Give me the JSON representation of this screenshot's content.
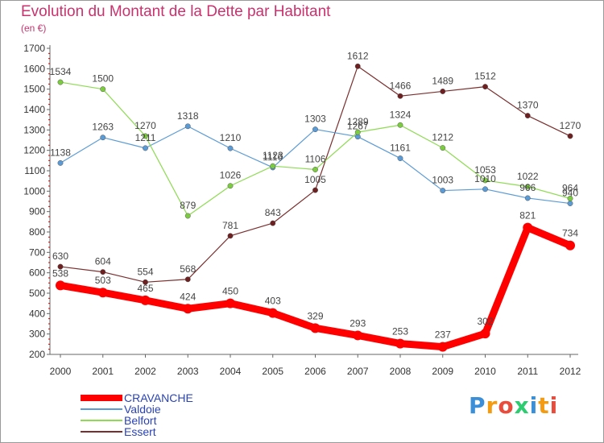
{
  "header": {
    "title": "Evolution du Montant de la Dette par Habitant",
    "subtitle": "(en €)"
  },
  "logo": {
    "letters": [
      "P",
      "r",
      "o",
      "x",
      "i",
      "t",
      "i"
    ],
    "colors": [
      "#3a8fd8",
      "#f39c12",
      "#e74c3c",
      "#2ecc71",
      "#3a8fd8",
      "#f39c12",
      "#e74c3c"
    ]
  },
  "chart_data": {
    "type": "line",
    "x": [
      "2000",
      "2001",
      "2002",
      "2003",
      "2004",
      "2005",
      "2006",
      "2007",
      "2008",
      "2009",
      "2010",
      "2011",
      "2012"
    ],
    "ylim": [
      200,
      1700
    ],
    "yticks": [
      200,
      300,
      400,
      500,
      600,
      700,
      800,
      900,
      1000,
      1100,
      1200,
      1300,
      1400,
      1500,
      1600,
      1700
    ],
    "grid": false,
    "legend_position": "bottom-left",
    "series": [
      {
        "name": "CRAVANCHE",
        "color": "#ff0000",
        "marker_color": "#ff0000",
        "width": 9,
        "values": [
          538,
          503,
          465,
          424,
          450,
          403,
          329,
          293,
          253,
          237,
          302,
          821,
          734
        ]
      },
      {
        "name": "Valdoie",
        "color": "#5b9bd5",
        "marker_color": "#5b9bd5",
        "width": 1.2,
        "values": [
          1138,
          1263,
          1211,
          1318,
          1210,
          1116,
          1303,
          1267,
          1161,
          1003,
          1010,
          966,
          940
        ]
      },
      {
        "name": "Belfort",
        "color": "#8edb53",
        "marker_color": "#7ccc3f",
        "width": 1.2,
        "values": [
          1534,
          1500,
          1270,
          879,
          1026,
          1123,
          1106,
          1289,
          1324,
          1212,
          1053,
          1022,
          964
        ]
      },
      {
        "name": "Essert",
        "color": "#7a2e2e",
        "marker_color": "#6e1f1f",
        "width": 1.2,
        "values": [
          630,
          604,
          554,
          568,
          781,
          843,
          1005,
          1612,
          1466,
          1489,
          1512,
          1370,
          1270
        ]
      }
    ],
    "data_labels": [
      [
        "538",
        "503",
        "465",
        "424",
        "450",
        "403",
        "329",
        "293",
        "253",
        "237",
        "302",
        "821",
        "734"
      ],
      [
        "1138",
        "1263",
        "1211",
        "1318",
        "1210",
        "1116",
        "1303",
        "1267",
        "1161",
        "1003",
        "1010",
        "966",
        "940"
      ],
      [
        "1534",
        "1500",
        "1270",
        "879",
        "1026",
        "1123",
        "1106",
        "1289",
        "1324",
        "1212",
        "1053",
        "1022",
        "964"
      ],
      [
        "630",
        "604",
        "554",
        "568",
        "781",
        "843",
        "1005",
        "1612",
        "1466",
        "1489",
        "1512",
        "1370",
        "1270"
      ]
    ]
  }
}
